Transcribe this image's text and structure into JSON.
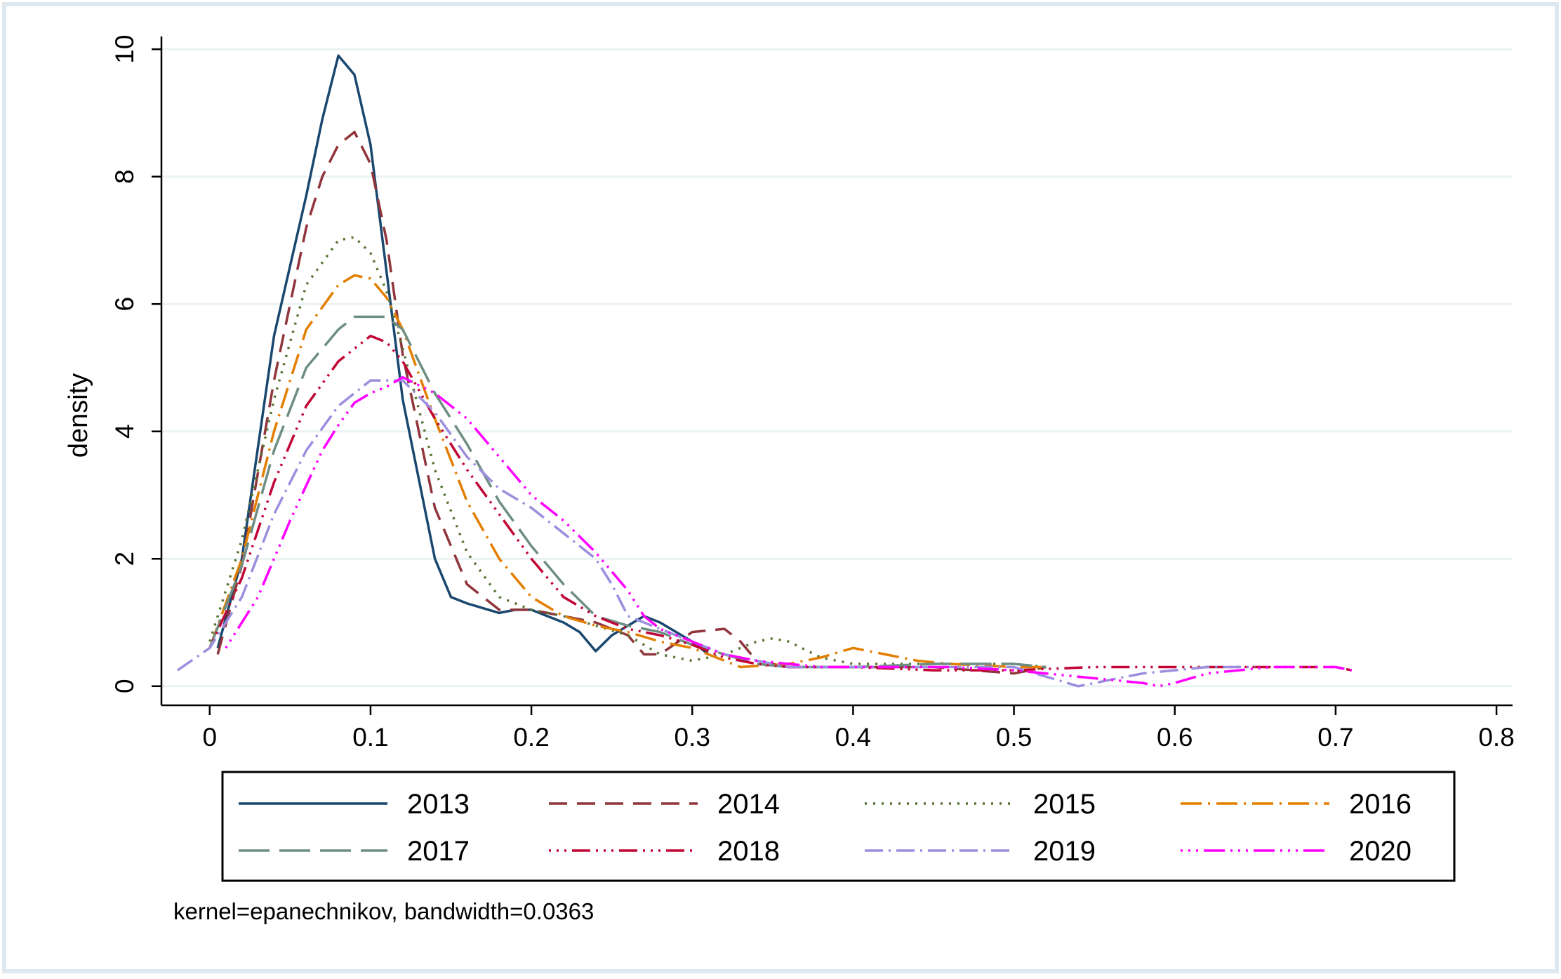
{
  "chart_data": {
    "type": "line",
    "title": "",
    "xlabel": "",
    "ylabel": "density",
    "xlim": [
      -0.03,
      0.81
    ],
    "ylim": [
      -0.3,
      10.2
    ],
    "xticks": [
      0,
      0.1,
      0.2,
      0.3,
      0.4,
      0.5,
      0.6,
      0.7,
      0.8
    ],
    "xtick_labels": [
      "0",
      "0.1",
      "0.2",
      "0.3",
      "0.4",
      "0.5",
      "0.6",
      "0.7",
      "0.8"
    ],
    "yticks": [
      0,
      2,
      4,
      6,
      8,
      10
    ],
    "ytick_labels": [
      "0",
      "2",
      "4",
      "6",
      "8",
      "10"
    ],
    "grid": true,
    "legend_position": "bottom",
    "note": "kernel=epanechnikov, bandwidth=0.0363",
    "series": [
      {
        "name": "2013",
        "color": "#1a476f",
        "dash": "none",
        "x": [
          0.005,
          0.02,
          0.04,
          0.06,
          0.07,
          0.08,
          0.09,
          0.1,
          0.11,
          0.12,
          0.14,
          0.15,
          0.16,
          0.18,
          0.19,
          0.2,
          0.22,
          0.23,
          0.24,
          0.25,
          0.27,
          0.28,
          0.3,
          0.31
        ],
        "y": [
          0.6,
          2.0,
          5.5,
          7.7,
          8.9,
          9.9,
          9.6,
          8.5,
          6.5,
          4.5,
          2.0,
          1.4,
          1.3,
          1.15,
          1.2,
          1.2,
          1.0,
          0.85,
          0.55,
          0.8,
          1.1,
          1.0,
          0.7,
          0.5
        ]
      },
      {
        "name": "2014",
        "color": "#90353b",
        "dash": "26,14",
        "x": [
          0.005,
          0.02,
          0.04,
          0.06,
          0.07,
          0.08,
          0.09,
          0.1,
          0.11,
          0.12,
          0.14,
          0.16,
          0.18,
          0.2,
          0.22,
          0.24,
          0.26,
          0.27,
          0.28,
          0.3,
          0.32,
          0.33,
          0.34,
          0.36,
          0.4,
          0.45,
          0.5,
          0.52
        ],
        "y": [
          0.5,
          1.9,
          4.8,
          7.2,
          8.0,
          8.5,
          8.7,
          8.2,
          7.0,
          5.2,
          2.8,
          1.6,
          1.2,
          1.2,
          1.1,
          1.0,
          0.8,
          0.5,
          0.5,
          0.85,
          0.9,
          0.7,
          0.4,
          0.3,
          0.3,
          0.3,
          0.2,
          0.3
        ]
      },
      {
        "name": "2015",
        "color": "#55752f",
        "dash": "3,9",
        "x": [
          0.0,
          0.02,
          0.04,
          0.06,
          0.08,
          0.09,
          0.1,
          0.11,
          0.12,
          0.14,
          0.16,
          0.18,
          0.2,
          0.22,
          0.24,
          0.26,
          0.28,
          0.3,
          0.32,
          0.34,
          0.35,
          0.36,
          0.38,
          0.4,
          0.45,
          0.5,
          0.52
        ],
        "y": [
          0.7,
          2.3,
          4.5,
          6.3,
          7.0,
          7.05,
          6.8,
          6.2,
          5.3,
          3.4,
          2.1,
          1.4,
          1.2,
          1.1,
          0.95,
          0.8,
          0.5,
          0.4,
          0.5,
          0.7,
          0.75,
          0.7,
          0.45,
          0.35,
          0.35,
          0.35,
          0.3
        ]
      },
      {
        "name": "2016",
        "color": "#e37e00",
        "dash": "30,9,3,9",
        "x": [
          0.0,
          0.02,
          0.04,
          0.06,
          0.08,
          0.09,
          0.1,
          0.11,
          0.12,
          0.14,
          0.16,
          0.18,
          0.2,
          0.22,
          0.24,
          0.26,
          0.28,
          0.3,
          0.33,
          0.36,
          0.38,
          0.4,
          0.41,
          0.42,
          0.44,
          0.46,
          0.5,
          0.52
        ],
        "y": [
          0.6,
          2.0,
          4.0,
          5.6,
          6.3,
          6.45,
          6.4,
          6.1,
          5.6,
          4.2,
          2.9,
          2.0,
          1.4,
          1.1,
          0.95,
          0.85,
          0.7,
          0.6,
          0.3,
          0.35,
          0.45,
          0.6,
          0.55,
          0.5,
          0.4,
          0.35,
          0.3,
          0.3
        ]
      },
      {
        "name": "2017",
        "color": "#6e8e84",
        "dash": "44,14",
        "x": [
          0.0,
          0.02,
          0.04,
          0.06,
          0.08,
          0.09,
          0.1,
          0.11,
          0.12,
          0.14,
          0.16,
          0.18,
          0.2,
          0.22,
          0.24,
          0.26,
          0.28,
          0.3,
          0.32,
          0.34,
          0.36,
          0.4,
          0.45,
          0.5,
          0.52
        ],
        "y": [
          0.6,
          1.9,
          3.7,
          5.0,
          5.6,
          5.8,
          5.8,
          5.8,
          5.6,
          4.6,
          3.8,
          2.9,
          2.2,
          1.6,
          1.1,
          0.95,
          0.85,
          0.65,
          0.5,
          0.35,
          0.3,
          0.3,
          0.35,
          0.35,
          0.3
        ]
      },
      {
        "name": "2018",
        "color": "#c10534",
        "dash": "3,8,3,8,3,8,26,8",
        "x": [
          0.0,
          0.02,
          0.04,
          0.06,
          0.08,
          0.1,
          0.11,
          0.12,
          0.14,
          0.16,
          0.18,
          0.2,
          0.22,
          0.24,
          0.26,
          0.28,
          0.3,
          0.32,
          0.34,
          0.36,
          0.4,
          0.45,
          0.5,
          0.55,
          0.6,
          0.65,
          0.7,
          0.71
        ],
        "y": [
          0.6,
          1.7,
          3.2,
          4.4,
          5.1,
          5.5,
          5.4,
          5.1,
          4.2,
          3.4,
          2.7,
          2.0,
          1.4,
          1.1,
          0.9,
          0.8,
          0.65,
          0.45,
          0.35,
          0.3,
          0.3,
          0.25,
          0.25,
          0.3,
          0.3,
          0.3,
          0.3,
          0.25
        ]
      },
      {
        "name": "2019",
        "color": "#9c8ede",
        "dash": "26,8,3,8",
        "x": [
          -0.02,
          0.0,
          0.02,
          0.04,
          0.06,
          0.08,
          0.1,
          0.12,
          0.14,
          0.16,
          0.18,
          0.2,
          0.22,
          0.24,
          0.25,
          0.26,
          0.28,
          0.3,
          0.32,
          0.36,
          0.4,
          0.45,
          0.5,
          0.52,
          0.54,
          0.56,
          0.58,
          0.6,
          0.62,
          0.65
        ],
        "y": [
          0.25,
          0.6,
          1.4,
          2.7,
          3.7,
          4.4,
          4.8,
          4.8,
          4.3,
          3.6,
          3.1,
          2.8,
          2.4,
          2.0,
          1.6,
          1.1,
          0.9,
          0.7,
          0.5,
          0.3,
          0.3,
          0.3,
          0.3,
          0.15,
          0.0,
          0.1,
          0.2,
          0.25,
          0.3,
          0.3
        ]
      },
      {
        "name": "2020",
        "color": "#ff00ff",
        "dash": "3,8,3,8,3,8,30,8",
        "x": [
          0.01,
          0.03,
          0.05,
          0.07,
          0.08,
          0.09,
          0.1,
          0.11,
          0.12,
          0.14,
          0.16,
          0.18,
          0.2,
          0.22,
          0.24,
          0.26,
          0.27,
          0.28,
          0.3,
          0.32,
          0.34,
          0.38,
          0.42,
          0.46,
          0.5,
          0.54,
          0.56,
          0.58,
          0.59,
          0.6,
          0.62,
          0.66,
          0.7,
          0.71
        ],
        "y": [
          0.6,
          1.4,
          2.6,
          3.7,
          4.1,
          4.45,
          4.6,
          4.7,
          4.85,
          4.6,
          4.2,
          3.6,
          3.0,
          2.6,
          2.1,
          1.5,
          1.1,
          0.9,
          0.7,
          0.5,
          0.4,
          0.3,
          0.3,
          0.3,
          0.25,
          0.15,
          0.1,
          0.05,
          0.0,
          0.05,
          0.2,
          0.3,
          0.3,
          0.25
        ]
      }
    ]
  }
}
